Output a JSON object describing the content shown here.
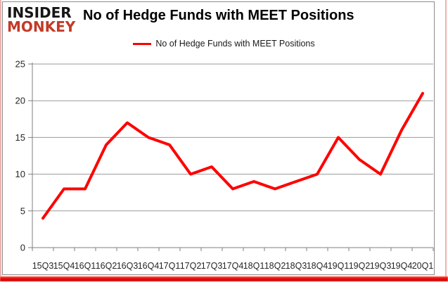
{
  "logo": {
    "line1": "INSIDER",
    "line2": "MONKEY"
  },
  "header": {
    "title": "No of Hedge Funds with MEET Positions"
  },
  "legend": {
    "label": "No of Hedge Funds with MEET Positions"
  },
  "colors": {
    "series_line_red": "#ff0000",
    "logo_monkey_red": "#c23b27",
    "bottom_bar_red": "#ec0f0f",
    "side_border_pink": "#efb3ae",
    "chart_border_grey": "#8c8c8c",
    "gridline_grey": "#9a9a9a",
    "axis_grey": "#7f7f7f",
    "label_text": "#262626"
  },
  "chart_data": {
    "type": "line",
    "title": "No of Hedge Funds with MEET Positions",
    "xlabel": "",
    "ylabel": "",
    "grid": true,
    "legend_position": "top",
    "ylim": [
      0,
      25
    ],
    "yticks": [
      0,
      5,
      10,
      15,
      20,
      25
    ],
    "categories": [
      "15Q3",
      "15Q4",
      "16Q1",
      "16Q2",
      "16Q3",
      "16Q4",
      "17Q1",
      "17Q2",
      "17Q3",
      "17Q4",
      "18Q1",
      "18Q2",
      "18Q3",
      "18Q4",
      "19Q1",
      "19Q2",
      "19Q3",
      "19Q4",
      "20Q1"
    ],
    "series": [
      {
        "name": "No of Hedge Funds with MEET Positions",
        "color": "#ff0000",
        "values": [
          4,
          8,
          8,
          14,
          17,
          15,
          14,
          10,
          11,
          8,
          9,
          8,
          9,
          10,
          15,
          12,
          10,
          16,
          21
        ]
      }
    ]
  }
}
